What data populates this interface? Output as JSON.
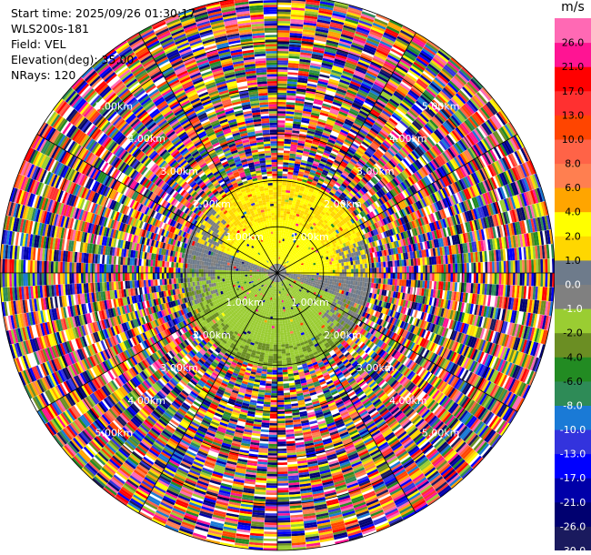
{
  "info": {
    "start_time": "Start time: 2025/09/26 01:30:17",
    "instrument": "WLS200s-181",
    "field": "Field: VEL",
    "elevation": "Elevation(deg): 35.00",
    "nrays": "NRays: 120"
  },
  "chart_data": {
    "type": "heatmap",
    "projection": "polar-ppi",
    "n_rays": 120,
    "max_range_km": 6.0,
    "range_ring_labels": [
      {
        "text": "1.00km",
        "r": 1.0
      },
      {
        "text": "2.00km",
        "r": 2.0
      },
      {
        "text": "3.00km",
        "r": 3.0
      },
      {
        "text": "4.00km",
        "r": 4.0
      },
      {
        "text": "5.00km",
        "r": 5.0
      }
    ],
    "colorbar": {
      "unit": "m/s",
      "bins": [
        {
          "label": "-30.0",
          "color": "#1a1a5e"
        },
        {
          "label": "-26.0",
          "color": "#000070"
        },
        {
          "label": "-21.0",
          "color": "#0000a8"
        },
        {
          "label": "-17.0",
          "color": "#0000ff"
        },
        {
          "label": "-13.0",
          "color": "#3333dd"
        },
        {
          "label": "-10.0",
          "color": "#1a7ad6"
        },
        {
          "label": "-8.0",
          "color": "#2e8b57"
        },
        {
          "label": "-6.0",
          "color": "#228b22"
        },
        {
          "label": "-4.0",
          "color": "#6b8e23"
        },
        {
          "label": "-2.0",
          "color": "#9acd32"
        },
        {
          "label": "-1.0",
          "color": "#808080"
        },
        {
          "label": "0.0",
          "color": "#6e7b8b"
        },
        {
          "label": "1.0",
          "color": "#ffd700"
        },
        {
          "label": "2.0",
          "color": "#ffff00"
        },
        {
          "label": "4.0",
          "color": "#ffa500"
        },
        {
          "label": "6.0",
          "color": "#ff7f50"
        },
        {
          "label": "8.0",
          "color": "#ff6347"
        },
        {
          "label": "10.0",
          "color": "#ff4500"
        },
        {
          "label": "13.0",
          "color": "#ff3030"
        },
        {
          "label": "17.0",
          "color": "#ff0000"
        },
        {
          "label": "21.0",
          "color": "#ff1493"
        },
        {
          "label": "26.0",
          "color": "#ff69b4"
        }
      ]
    }
  }
}
